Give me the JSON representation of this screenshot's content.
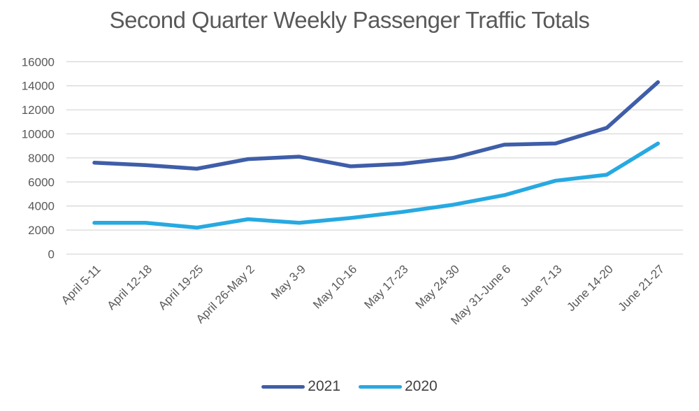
{
  "title": "Second Quarter Weekly Passenger Traffic Totals",
  "colors": {
    "background": "#FFFFFF",
    "title_text": "#595959",
    "axis_text": "#595959",
    "gridline": "#D9D9D9",
    "legend_text": "#404040",
    "series_2021": "#3F5EA9",
    "series_2020": "#27A9E1"
  },
  "legend": {
    "items": [
      {
        "label": "2021",
        "color": "#3F5EA9"
      },
      {
        "label": "2020",
        "color": "#27A9E1"
      }
    ]
  },
  "chart_data": {
    "type": "line",
    "title": "Second Quarter Weekly Passenger Traffic Totals",
    "categories": [
      "April 5-11",
      "April 12-18",
      "April 19-25",
      "April 26-May 2",
      "May 3-9",
      "May 10-16",
      "May 17-23",
      "May 24-30",
      "May 31-June 6",
      "June 7-13",
      "June 14-20",
      "June 21-27"
    ],
    "series": [
      {
        "name": "2021",
        "color": "#3F5EA9",
        "values": [
          7600,
          7400,
          7100,
          7900,
          8100,
          7300,
          7500,
          8000,
          9100,
          9200,
          10500,
          14300
        ]
      },
      {
        "name": "2020",
        "color": "#27A9E1",
        "values": [
          2600,
          2600,
          2200,
          2900,
          2600,
          3000,
          3500,
          4100,
          4900,
          6100,
          6600,
          9200
        ]
      }
    ],
    "xlabel": "",
    "ylabel": "",
    "ylim": [
      0,
      16000
    ],
    "yticks": [
      0,
      2000,
      4000,
      6000,
      8000,
      10000,
      12000,
      14000,
      16000
    ],
    "grid": true,
    "legend_position": "bottom",
    "x_label_rotation_deg": 45
  }
}
